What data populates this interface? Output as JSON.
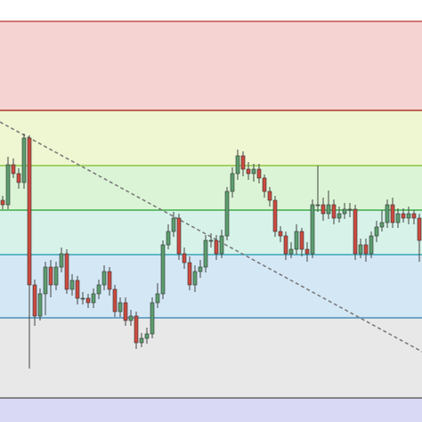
{
  "chart_data": {
    "type": "candlestick",
    "ylim": [
      0,
      474
    ],
    "levels": [
      {
        "value": 450,
        "color": "#c0504d"
      },
      {
        "value": 350,
        "color": "#b03a2e"
      },
      {
        "value": 288,
        "color": "#8cc63f"
      },
      {
        "value": 238,
        "color": "#3fae49"
      },
      {
        "value": 188,
        "color": "#3aa6b9"
      },
      {
        "value": 117,
        "color": "#4a90b8"
      },
      {
        "value": 27,
        "color": "#666666"
      }
    ],
    "band_colors": [
      "#f5d3d3",
      "#eef6d2",
      "#dcf4d6",
      "#d6f2e9",
      "#d4e7f5",
      "#e8e8e8",
      "#d9d9f6"
    ],
    "up_color": "#5b9e6e",
    "down_color": "#cc4a3f",
    "open": [
      249,
      244,
      289,
      279,
      269,
      319,
      154,
      119,
      144,
      174,
      154,
      174,
      189,
      149,
      159,
      139,
      139,
      134,
      144,
      154,
      169,
      149,
      124,
      134,
      114,
      119,
      89,
      94,
      99,
      134,
      144,
      199,
      214,
      229,
      189,
      179,
      154,
      169,
      174,
      204,
      204,
      189,
      209,
      259,
      279,
      299,
      284,
      279,
      284,
      274,
      259,
      249,
      214,
      209,
      189,
      194,
      214,
      194,
      189,
      244,
      244,
      234,
      244,
      229,
      234,
      239,
      239,
      189,
      199,
      189,
      209,
      219,
      224,
      244,
      224,
      234,
      229,
      234,
      229
    ],
    "high": [
      254,
      298,
      296,
      285,
      324,
      322,
      160,
      150,
      180,
      182,
      180,
      196,
      194,
      166,
      164,
      146,
      144,
      150,
      160,
      176,
      174,
      154,
      140,
      140,
      126,
      124,
      100,
      106,
      140,
      156,
      204,
      222,
      236,
      234,
      196,
      186,
      176,
      182,
      210,
      212,
      210,
      216,
      264,
      286,
      306,
      304,
      292,
      290,
      290,
      278,
      264,
      254,
      220,
      214,
      202,
      222,
      218,
      202,
      250,
      288,
      252,
      260,
      250,
      242,
      246,
      246,
      244,
      206,
      206,
      214,
      226,
      238,
      250,
      252,
      240,
      240,
      242,
      238,
      234
    ],
    "low": [
      239,
      239,
      274,
      262,
      262,
      60,
      108,
      114,
      120,
      140,
      148,
      168,
      144,
      142,
      132,
      132,
      128,
      128,
      138,
      148,
      142,
      118,
      118,
      108,
      108,
      82,
      84,
      88,
      94,
      128,
      138,
      194,
      208,
      182,
      172,
      148,
      146,
      162,
      168,
      196,
      182,
      184,
      204,
      252,
      272,
      276,
      272,
      270,
      268,
      252,
      242,
      208,
      202,
      182,
      184,
      188,
      186,
      180,
      184,
      236,
      226,
      228,
      222,
      224,
      228,
      230,
      182,
      184,
      180,
      184,
      202,
      214,
      218,
      218,
      218,
      224,
      222,
      222,
      180
    ],
    "close": [
      244,
      289,
      279,
      269,
      319,
      154,
      119,
      144,
      174,
      154,
      174,
      189,
      149,
      159,
      139,
      139,
      134,
      144,
      154,
      169,
      149,
      124,
      134,
      114,
      119,
      89,
      94,
      99,
      134,
      144,
      199,
      214,
      229,
      189,
      179,
      154,
      169,
      174,
      204,
      204,
      189,
      209,
      259,
      279,
      299,
      284,
      279,
      284,
      274,
      259,
      249,
      214,
      209,
      189,
      194,
      214,
      194,
      189,
      244,
      244,
      234,
      244,
      229,
      234,
      239,
      239,
      189,
      199,
      189,
      209,
      219,
      224,
      244,
      224,
      234,
      229,
      234,
      229,
      204
    ]
  }
}
